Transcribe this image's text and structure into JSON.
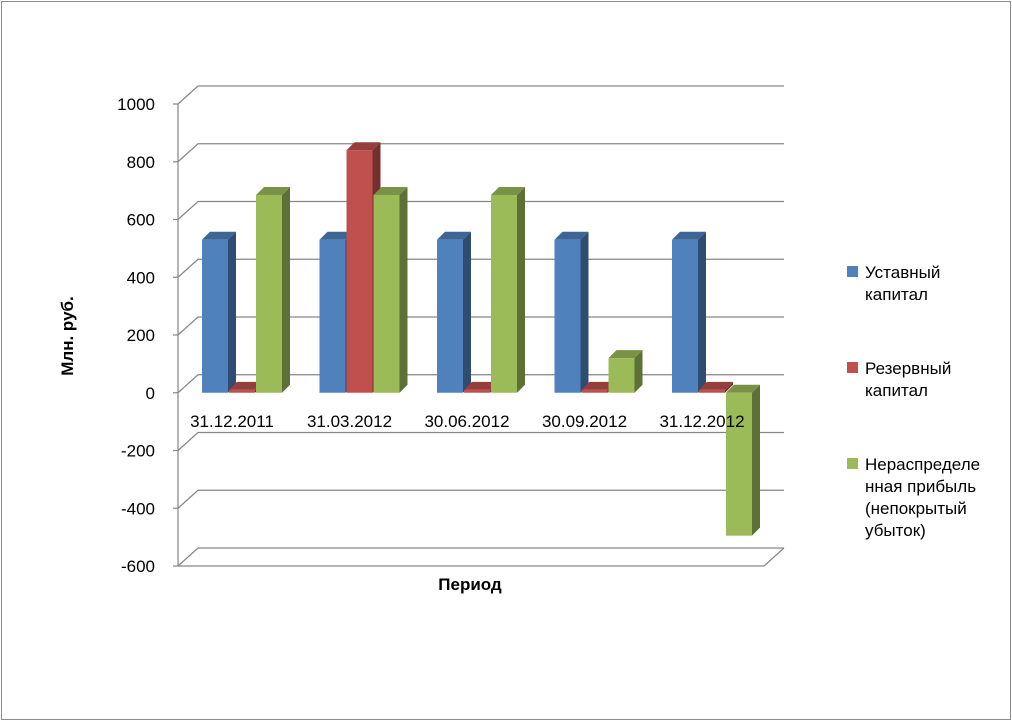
{
  "chart_data": {
    "type": "bar",
    "categories": [
      "31.12.2011",
      "31.03.2012",
      "30.06.2012",
      "30.09.2012",
      "31.12.2012"
    ],
    "series": [
      {
        "name": "Уставный капитал",
        "legend_lines": [
          "Уставный",
          "капитал"
        ],
        "color": "#4f81bd",
        "values": [
          530,
          530,
          530,
          530,
          530
        ]
      },
      {
        "name": "Резервный капитал",
        "legend_lines": [
          "Резервный",
          "капитал"
        ],
        "color": "#c0504d",
        "values": [
          10,
          840,
          10,
          10,
          10
        ]
      },
      {
        "name": "Нераспределенная прибыль (непокрытый убыток)",
        "legend_lines": [
          "Нераспределе",
          "нная прибыль",
          "(непокрытый",
          "убыток)"
        ],
        "color": "#9bbb59",
        "values": [
          685,
          685,
          685,
          120,
          -495
        ]
      }
    ],
    "xlabel": "Период",
    "ylabel": "Млн. руб.",
    "ylim": [
      -600,
      1000
    ],
    "yticks": [
      1000,
      800,
      600,
      400,
      200,
      0,
      -200,
      -400,
      -600
    ],
    "grid": true,
    "legend_position": "right"
  }
}
